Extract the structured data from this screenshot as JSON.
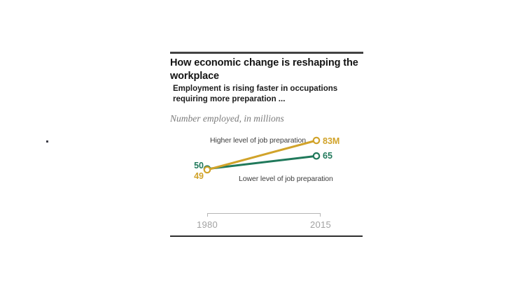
{
  "header": {
    "title_lines": [
      "How economic change is reshaping the",
      "workplace"
    ],
    "subtitle_lines": [
      "Employment is rising faster in occupations",
      "requiring more preparation ..."
    ],
    "axis_note": "Number employed, in millions"
  },
  "chart_data": {
    "type": "line",
    "x": [
      1980,
      2015
    ],
    "x_tick_labels": [
      "1980",
      "2015"
    ],
    "series": [
      {
        "name": "Higher level of job preparation",
        "values": [
          49,
          83
        ],
        "color": "#d1a32a",
        "start_label": "49",
        "end_label": "83M"
      },
      {
        "name": "Lower level of job preparation",
        "values": [
          50,
          65
        ],
        "color": "#20795b",
        "start_label": "50",
        "end_label": "65"
      }
    ],
    "ylim": [
      49,
      83
    ],
    "grid": false,
    "legend_position": "inline",
    "marker": "open-circle"
  },
  "colors": {
    "rule_dark": "#424242",
    "bottom_rule": "#2e2e2e",
    "bracket_gray": "#b5b5b5",
    "tick_gray": "#a2a2a2",
    "series_label_gray": "#3d3d3d"
  }
}
